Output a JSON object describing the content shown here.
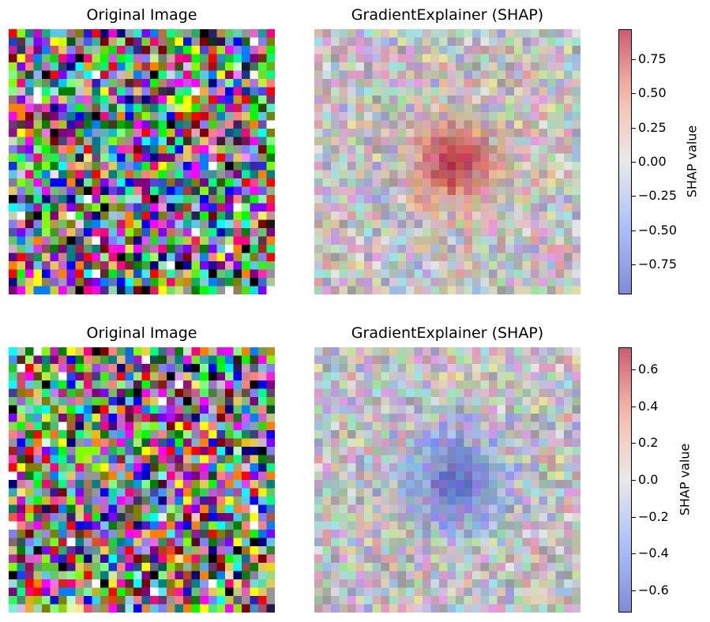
{
  "chart_data": [
    {
      "type": "heatmap",
      "panels": [
        {
          "title": "Original Image",
          "content": "random 32x32 RGB noise image"
        },
        {
          "title": "GradientExplainer (SHAP)",
          "content": "SHAP overlay, positive (red) cluster at center"
        }
      ],
      "grid_size": [
        32,
        32
      ],
      "colorbar": {
        "label": "SHAP value",
        "colormap": "coolwarm",
        "range": [
          -0.97,
          0.97
        ],
        "ticks": [
          0.75,
          0.5,
          0.25,
          0.0,
          -0.25,
          -0.5,
          -0.75
        ],
        "tick_labels": [
          "0.75",
          "0.50",
          "0.25",
          "0.00",
          "−0.25",
          "−0.50",
          "−0.75"
        ]
      },
      "hotspot": "positive"
    },
    {
      "type": "heatmap",
      "panels": [
        {
          "title": "Original Image",
          "content": "random 32x32 RGB noise image"
        },
        {
          "title": "GradientExplainer (SHAP)",
          "content": "SHAP overlay, negative (blue) cluster at center"
        }
      ],
      "grid_size": [
        32,
        32
      ],
      "colorbar": {
        "label": "SHAP value",
        "colormap": "coolwarm",
        "range": [
          -0.72,
          0.72
        ],
        "ticks": [
          0.6,
          0.4,
          0.2,
          0.0,
          -0.2,
          -0.4,
          -0.6
        ],
        "tick_labels": [
          "0.6",
          "0.4",
          "0.2",
          "0.0",
          "−0.2",
          "−0.4",
          "−0.6"
        ]
      },
      "hotspot": "negative"
    }
  ]
}
